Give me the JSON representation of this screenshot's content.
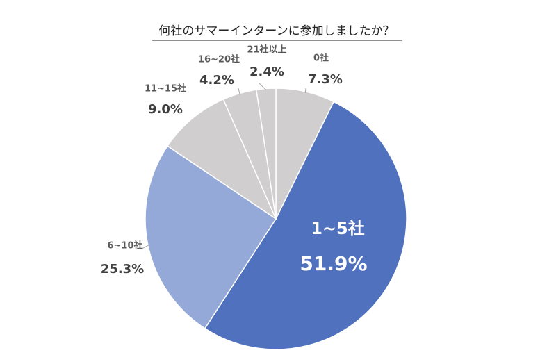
{
  "chart_data": {
    "type": "pie",
    "title": "何社のサマーインターンに参加しましたか？",
    "categories": [
      "0社",
      "1~5社",
      "6~10社",
      "11~15社",
      "16~20社",
      "21社以上"
    ],
    "values": [
      7.3,
      51.9,
      25.3,
      9.0,
      4.2,
      2.4
    ],
    "value_labels": [
      "7.3%",
      "51.9%",
      "25.3%",
      "9.0%",
      "4.2%",
      "2.4%"
    ],
    "colors": [
      "#d0cece",
      "#4f71be",
      "#94a9d8",
      "#d0cece",
      "#d0cece",
      "#d0cece"
    ]
  }
}
